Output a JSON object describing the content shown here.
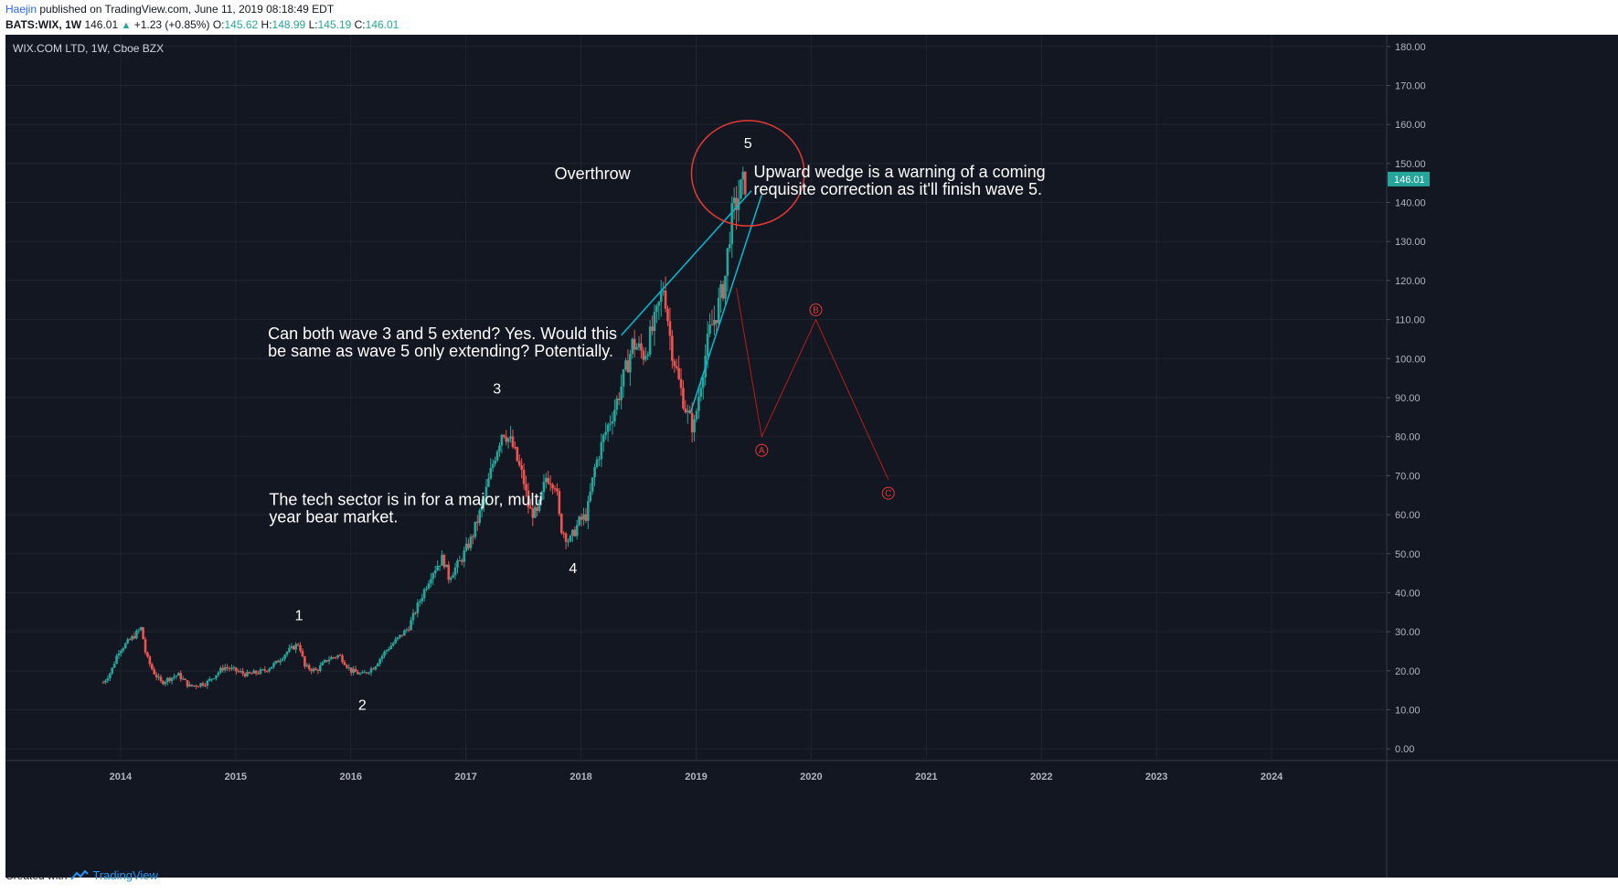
{
  "header": {
    "author": "Haejin",
    "published_text": "published on TradingView.com, June 11, 2019 08:18:49 EDT",
    "symbol": "BATS:WIX, 1W",
    "last": "146.01",
    "change": "+1.23 (+0.85%)",
    "o_label": "O:",
    "o_value": "145.62",
    "h_label": "H:",
    "h_value": "148.99",
    "l_label": "L:",
    "l_value": "145.19",
    "c_label": "C:",
    "c_value": "146.01"
  },
  "chart_title": "WIX.COM LTD, 1W, Cboe BZX",
  "footer": {
    "created_with": "Created with",
    "brand": "TradingView"
  },
  "colors": {
    "background": "#131722",
    "grid": "#1f2430",
    "up": "#26a69a",
    "down": "#ef5350",
    "trendline": "#00bcd4",
    "projection": "#b71c1c",
    "circle": "#e53935",
    "axis_text": "#b2b5be",
    "annotation": "#ffffff"
  },
  "chart_data": {
    "type": "candlestick",
    "title": "WIX.COM LTD, 1W, Cboe BZX",
    "y_ticks": [
      "180.00",
      "170.00",
      "160.00",
      "150.00",
      "140.00",
      "130.00",
      "120.00",
      "110.00",
      "100.00",
      "90.00",
      "80.00",
      "70.00",
      "60.00",
      "50.00",
      "40.00",
      "30.00",
      "20.00",
      "10.00",
      "0.00"
    ],
    "y_range": [
      -3,
      183
    ],
    "x_ticks": [
      "2014",
      "2015",
      "2016",
      "2017",
      "2018",
      "2019",
      "2020",
      "2021",
      "2022",
      "2023",
      "2024"
    ],
    "x_range": [
      2013.0,
      2025.0
    ],
    "current_price_label": "146.01",
    "current_price": 146.01,
    "price_path": [
      [
        2013.85,
        17
      ],
      [
        2013.92,
        20
      ],
      [
        2013.98,
        25
      ],
      [
        2014.05,
        27
      ],
      [
        2014.12,
        29
      ],
      [
        2014.18,
        31
      ],
      [
        2014.22,
        24
      ],
      [
        2014.28,
        20
      ],
      [
        2014.35,
        17
      ],
      [
        2014.42,
        18
      ],
      [
        2014.5,
        19
      ],
      [
        2014.6,
        16
      ],
      [
        2014.75,
        17
      ],
      [
        2014.9,
        21
      ],
      [
        2015.0,
        20
      ],
      [
        2015.1,
        19
      ],
      [
        2015.25,
        20
      ],
      [
        2015.35,
        22
      ],
      [
        2015.45,
        25
      ],
      [
        2015.55,
        27
      ],
      [
        2015.6,
        21
      ],
      [
        2015.7,
        20
      ],
      [
        2015.8,
        23
      ],
      [
        2015.9,
        24
      ],
      [
        2016.0,
        20
      ],
      [
        2016.1,
        19
      ],
      [
        2016.2,
        21
      ],
      [
        2016.3,
        25
      ],
      [
        2016.4,
        28
      ],
      [
        2016.5,
        31
      ],
      [
        2016.6,
        38
      ],
      [
        2016.7,
        45
      ],
      [
        2016.8,
        49
      ],
      [
        2016.85,
        44
      ],
      [
        2016.95,
        48
      ],
      [
        2017.05,
        54
      ],
      [
        2017.15,
        63
      ],
      [
        2017.25,
        75
      ],
      [
        2017.32,
        82
      ],
      [
        2017.4,
        78
      ],
      [
        2017.5,
        69
      ],
      [
        2017.55,
        61
      ],
      [
        2017.62,
        60
      ],
      [
        2017.7,
        70
      ],
      [
        2017.78,
        68
      ],
      [
        2017.82,
        57
      ],
      [
        2017.9,
        53
      ],
      [
        2017.98,
        58
      ],
      [
        2018.05,
        60
      ],
      [
        2018.12,
        72
      ],
      [
        2018.2,
        80
      ],
      [
        2018.3,
        88
      ],
      [
        2018.38,
        96
      ],
      [
        2018.45,
        104
      ],
      [
        2018.55,
        101
      ],
      [
        2018.65,
        110
      ],
      [
        2018.72,
        119
      ],
      [
        2018.78,
        104
      ],
      [
        2018.85,
        94
      ],
      [
        2018.92,
        86
      ],
      [
        2018.98,
        82
      ],
      [
        2019.05,
        96
      ],
      [
        2019.12,
        107
      ],
      [
        2019.18,
        112
      ],
      [
        2019.25,
        120
      ],
      [
        2019.3,
        135
      ],
      [
        2019.35,
        140
      ],
      [
        2019.4,
        144
      ],
      [
        2019.44,
        146.01
      ]
    ],
    "wave_labels": [
      {
        "text": "1",
        "x": 2015.55,
        "y": 33
      },
      {
        "text": "2",
        "x": 2016.1,
        "y": 10
      },
      {
        "text": "3",
        "x": 2017.27,
        "y": 91
      },
      {
        "text": "4",
        "x": 2017.93,
        "y": 45
      },
      {
        "text": "5",
        "x": 2019.45,
        "y": 154
      }
    ],
    "trendlines": [
      {
        "from": [
          2018.35,
          106
        ],
        "to": [
          2019.48,
          143
        ]
      },
      {
        "from": [
          2018.95,
          86
        ],
        "to": [
          2019.57,
          142
        ]
      }
    ],
    "projection_path": [
      [
        2019.35,
        118
      ],
      [
        2019.57,
        80
      ],
      [
        2020.04,
        110
      ],
      [
        2020.67,
        69
      ]
    ],
    "projection_labels": [
      {
        "text": "A",
        "x": 2019.57,
        "y": 76.5
      },
      {
        "text": "B",
        "x": 2020.04,
        "y": 112.5
      },
      {
        "text": "C",
        "x": 2020.67,
        "y": 65.5
      }
    ],
    "circle": {
      "center_x": 2019.45,
      "center_y": 147.5,
      "radius_x_years": 0.49,
      "radius_y_price": 13.5
    },
    "annotations": [
      {
        "text": "Overthrow",
        "x": 2017.77,
        "y": 146
      },
      {
        "text": "Upward wedge is a warning of a coming",
        "x": 2019.5,
        "y": 146.5
      },
      {
        "text": "requisite correction as it'll finish wave 5.",
        "x": 2019.5,
        "y": 142
      },
      {
        "text": "Can both wave 3 and 5 extend? Yes. Would this",
        "x": 2015.28,
        "y": 105
      },
      {
        "text": "be same as wave 5 only extending? Potentially.",
        "x": 2015.28,
        "y": 100.5
      },
      {
        "text": "The tech sector is in for a major, multi",
        "x": 2015.29,
        "y": 62.5
      },
      {
        "text": "year bear market.",
        "x": 2015.29,
        "y": 58
      }
    ]
  }
}
